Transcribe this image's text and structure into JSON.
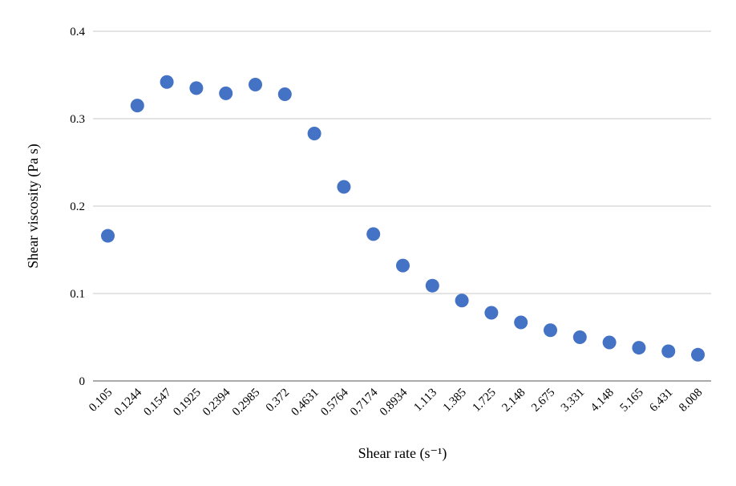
{
  "chart_data": {
    "type": "scatter",
    "title": "",
    "xlabel": "Shear rate (s⁻¹)",
    "ylabel": "Shear viscosity (Pa s)",
    "categories": [
      "0.105",
      "0.1244",
      "0.1547",
      "0.1925",
      "0.2394",
      "0.2985",
      "0.372",
      "0.4631",
      "0.5764",
      "0.7174",
      "0.8934",
      "1.113",
      "1.385",
      "1.725",
      "2.148",
      "2.675",
      "3.331",
      "4.148",
      "5.165",
      "6.431",
      "8.008"
    ],
    "series": [
      {
        "values": [
          0.166,
          0.315,
          0.342,
          0.335,
          0.329,
          0.339,
          0.328,
          0.283,
          0.222,
          0.168,
          0.132,
          0.109,
          0.092,
          0.078,
          0.067,
          0.058,
          0.05,
          0.044,
          0.038,
          0.034,
          0.03
        ]
      }
    ],
    "y_ticks": [
      "0",
      "0.1",
      "0.2",
      "0.3",
      "0.4"
    ],
    "ylim": [
      0,
      0.4
    ],
    "grid": true,
    "legend": "none",
    "marker_color": "#4472c4"
  }
}
